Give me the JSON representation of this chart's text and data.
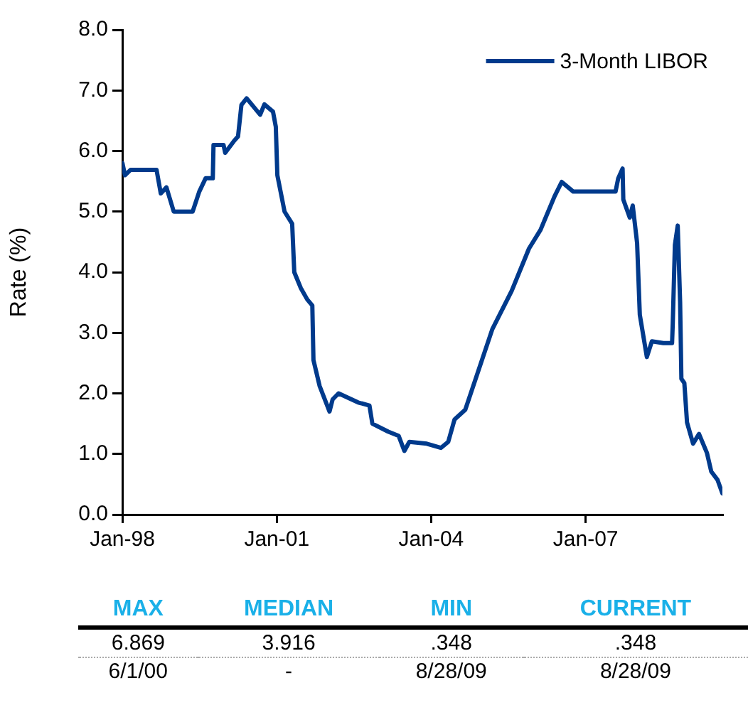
{
  "chart_data": {
    "type": "line",
    "ylabel": "Rate (%)",
    "legend": "top right",
    "x": [
      "1998-01-02",
      "1998-01-20",
      "1998-03-01",
      "1998-09-01",
      "1998-10-01",
      "1998-11-10",
      "1999-01-01",
      "1999-05-15",
      "1999-07-01",
      "1999-08-15",
      "1999-10-05",
      "1999-10-10",
      "1999-12-20",
      "2000-01-01",
      "2000-03-05",
      "2000-04-01",
      "2000-04-25",
      "2000-06-01",
      "2000-09-05",
      "2000-10-05",
      "2000-12-05",
      "2000-12-25",
      "2001-01-05",
      "2001-02-25",
      "2001-04-20",
      "2001-05-05",
      "2001-06-20",
      "2001-08-05",
      "2001-09-10",
      "2001-09-18",
      "2001-11-01",
      "2002-01-10",
      "2002-02-01",
      "2002-03-15",
      "2002-08-01",
      "2002-10-20",
      "2002-11-10",
      "2003-03-01",
      "2003-05-15",
      "2003-06-25",
      "2003-07-30",
      "2003-12-01",
      "2004-03-10",
      "2004-05-01",
      "2004-06-15",
      "2004-08-30",
      "2005-03-10",
      "2005-07-25",
      "2005-11-25",
      "2006-02-15",
      "2006-05-25",
      "2006-07-15",
      "2006-10-05",
      "2007-08-01",
      "2007-08-20",
      "2007-09-20",
      "2007-09-25",
      "2007-11-10",
      "2007-12-01",
      "2008-01-01",
      "2008-01-20",
      "2008-03-10",
      "2008-04-15",
      "2008-07-05",
      "2008-09-05",
      "2008-09-10",
      "2008-09-25",
      "2008-10-15",
      "2008-11-01",
      "2008-11-10",
      "2008-12-01",
      "2008-12-20",
      "2009-02-01",
      "2009-03-15",
      "2009-05-10",
      "2009-06-10",
      "2009-07-25",
      "2009-08-28"
    ],
    "series": [
      {
        "name": "3-Month LIBOR",
        "color": "#003a8c",
        "values": [
          5.8,
          5.6,
          5.69,
          5.69,
          5.3,
          5.4,
          5.0,
          5.0,
          5.33,
          5.55,
          5.55,
          6.1,
          6.1,
          5.97,
          6.17,
          6.24,
          6.76,
          6.869,
          6.6,
          6.77,
          6.65,
          6.4,
          5.6,
          5.0,
          4.8,
          4.0,
          3.74,
          3.55,
          3.45,
          2.55,
          2.12,
          1.7,
          1.9,
          2.0,
          1.85,
          1.8,
          1.5,
          1.37,
          1.3,
          1.05,
          1.2,
          1.17,
          1.1,
          1.2,
          1.57,
          1.73,
          3.06,
          3.69,
          4.39,
          4.7,
          5.25,
          5.49,
          5.33,
          5.33,
          5.55,
          5.71,
          5.2,
          4.9,
          5.1,
          4.48,
          3.3,
          2.6,
          2.86,
          2.83,
          2.83,
          3.16,
          4.45,
          4.77,
          3.51,
          2.24,
          2.17,
          1.52,
          1.17,
          1.33,
          1.02,
          0.71,
          0.57,
          0.348
        ]
      }
    ],
    "xlim": [
      "1998-01-01",
      "2009-08-28"
    ],
    "xticks": [
      {
        "value": "1998-01-01",
        "label": "Jan-98"
      },
      {
        "value": "2001-01-01",
        "label": "Jan-01"
      },
      {
        "value": "2004-01-01",
        "label": "Jan-04"
      },
      {
        "value": "2007-01-01",
        "label": "Jan-07"
      }
    ],
    "ylim": [
      0,
      8
    ],
    "yticks": [
      {
        "value": 0,
        "label": "0.0"
      },
      {
        "value": 1,
        "label": "1.0"
      },
      {
        "value": 2,
        "label": "2.0"
      },
      {
        "value": 3,
        "label": "3.0"
      },
      {
        "value": 4,
        "label": "4.0"
      },
      {
        "value": 5,
        "label": "5.0"
      },
      {
        "value": 6,
        "label": "6.0"
      },
      {
        "value": 7,
        "label": "7.0"
      },
      {
        "value": 8,
        "label": "8.0"
      }
    ],
    "annotations": [
      "MAX",
      "MEDIAN",
      "MIN",
      "CURRENT",
      "6.869",
      "3.916",
      ".348",
      ".348",
      "6/1/00",
      "-",
      "8/28/09",
      "8/28/09"
    ]
  }
}
